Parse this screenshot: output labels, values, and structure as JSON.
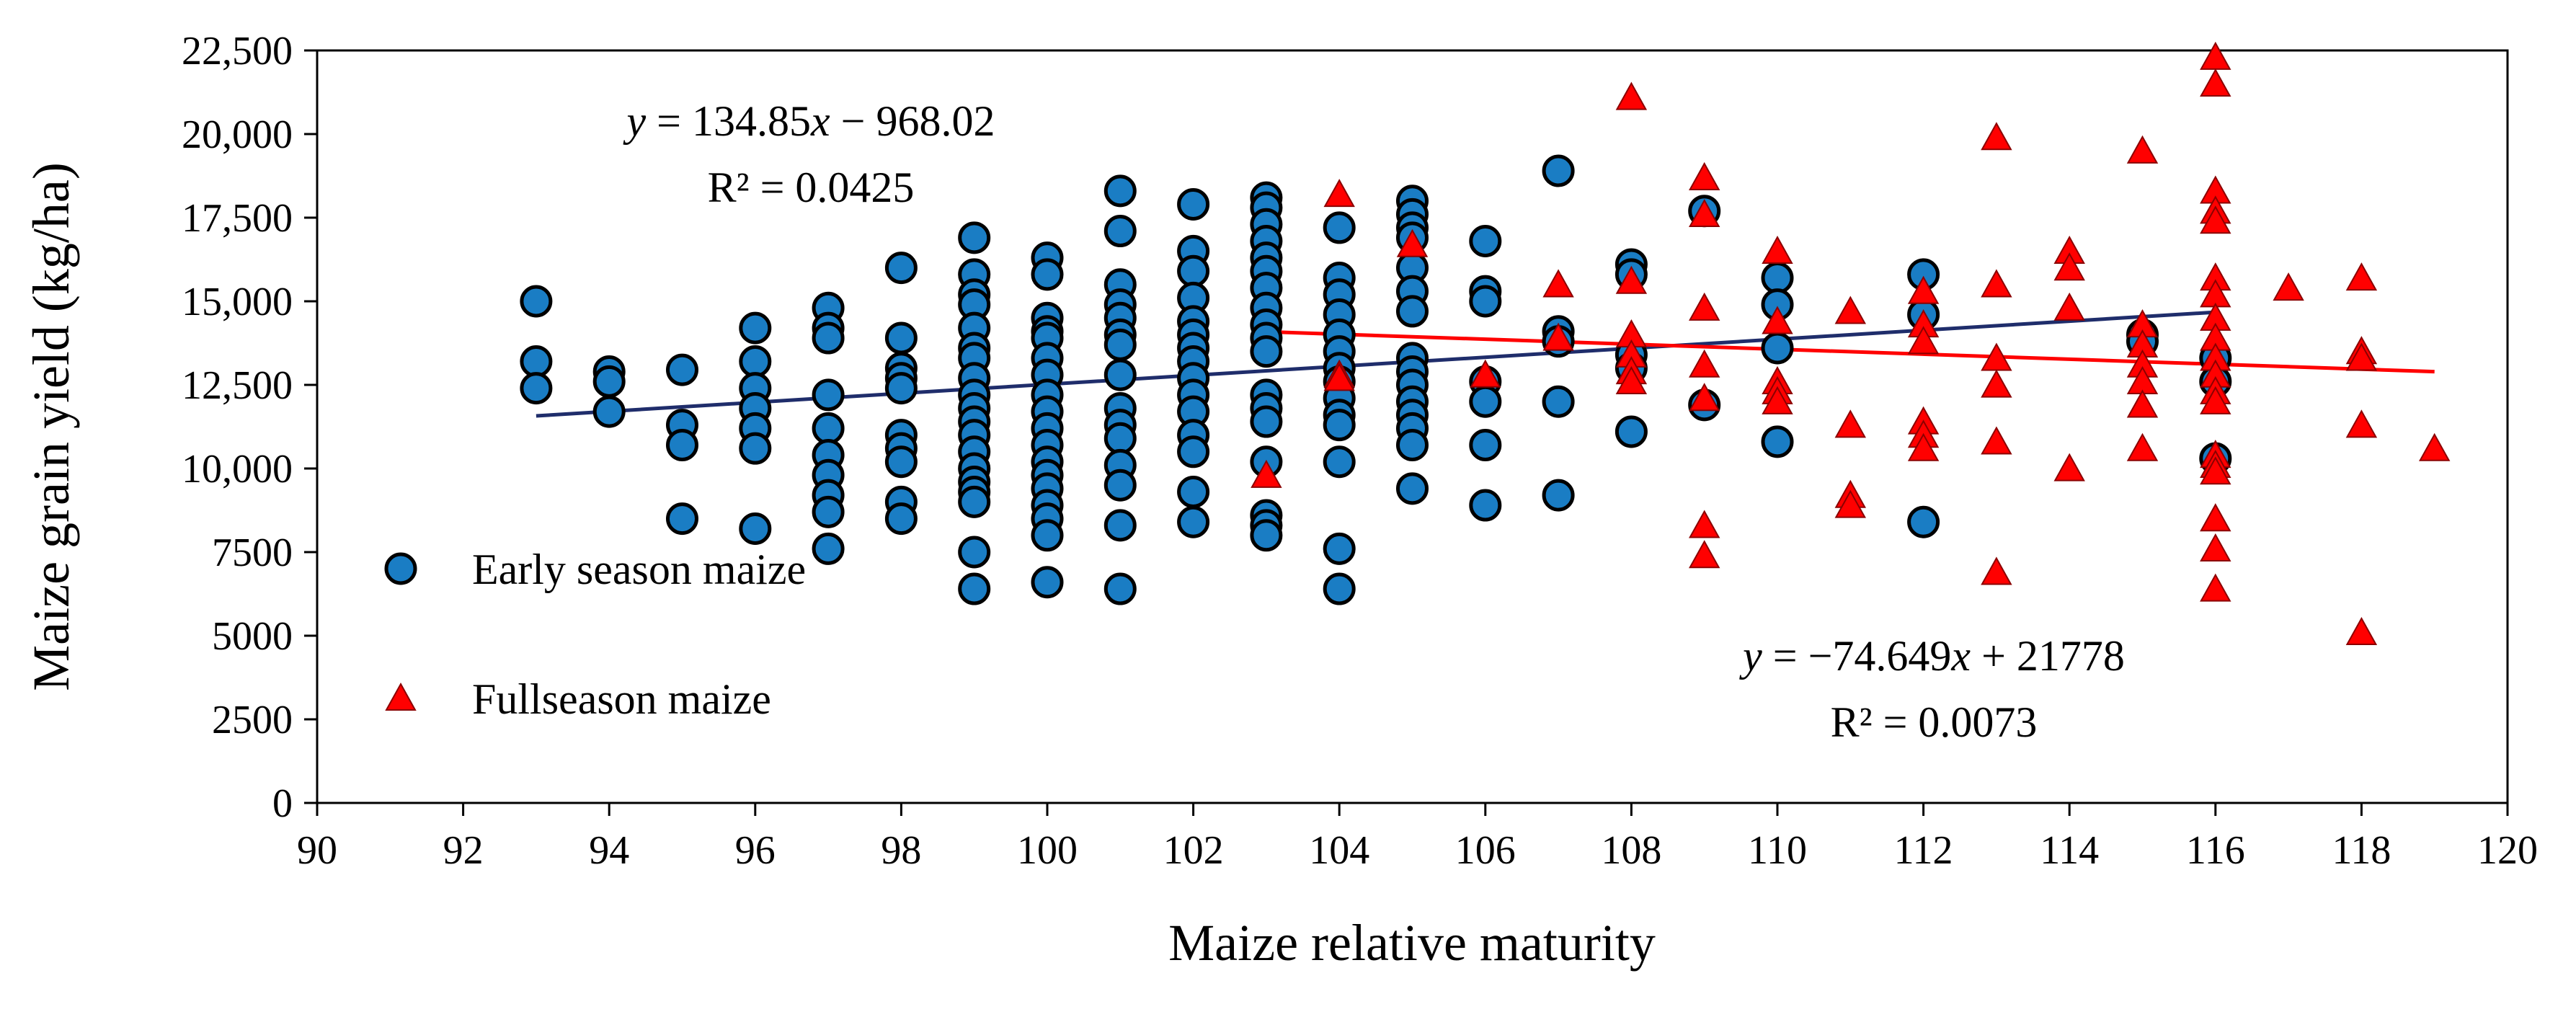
{
  "chart_data": {
    "type": "scatter",
    "xlabel": "Maize relative maturity",
    "ylabel": "Maize grain yield (kg/ha)",
    "xlim": [
      90,
      120
    ],
    "ylim": [
      0,
      22500
    ],
    "x_ticks": [
      90,
      92,
      94,
      96,
      98,
      100,
      102,
      104,
      106,
      108,
      110,
      112,
      114,
      116,
      118,
      120
    ],
    "y_ticks": [
      0,
      2500,
      5000,
      7500,
      10000,
      12500,
      15000,
      17500,
      20000,
      22500
    ],
    "y_tick_labels": [
      "0",
      "2500",
      "5000",
      "7500",
      "10,000",
      "12,500",
      "15,000",
      "17,500",
      "20,000",
      "22,500"
    ],
    "grid": false,
    "legend_position": "left-middle",
    "colors": {
      "early": "#1a7dc4",
      "full": "#ff0000",
      "early_edge": "#000000",
      "full_edge": "#8b0000",
      "early_trend": "#1f2d6b",
      "full_trend": "#ff0000",
      "early_eq": "#1f72b8",
      "full_eq": "#ff0000"
    },
    "series": [
      {
        "name": "Early season maize",
        "marker": "circle",
        "points": [
          [
            93,
            15000
          ],
          [
            93,
            13200
          ],
          [
            93,
            12400
          ],
          [
            94,
            12900
          ],
          [
            94,
            12600
          ],
          [
            94,
            11700
          ],
          [
            95,
            12950
          ],
          [
            95,
            11300
          ],
          [
            95,
            10700
          ],
          [
            95,
            8500
          ],
          [
            96,
            14200
          ],
          [
            96,
            13200
          ],
          [
            96,
            12400
          ],
          [
            96,
            11800
          ],
          [
            96,
            11200
          ],
          [
            96,
            10600
          ],
          [
            96,
            8200
          ],
          [
            97,
            14800
          ],
          [
            97,
            14200
          ],
          [
            97,
            13900
          ],
          [
            97,
            12200
          ],
          [
            97,
            11200
          ],
          [
            97,
            10400
          ],
          [
            97,
            9800
          ],
          [
            97,
            9200
          ],
          [
            97,
            8700
          ],
          [
            97,
            7600
          ],
          [
            98,
            16000
          ],
          [
            98,
            13900
          ],
          [
            98,
            13000
          ],
          [
            98,
            12700
          ],
          [
            98,
            12400
          ],
          [
            98,
            11000
          ],
          [
            98,
            10600
          ],
          [
            98,
            10200
          ],
          [
            98,
            9000
          ],
          [
            98,
            8500
          ],
          [
            99,
            16900
          ],
          [
            99,
            15800
          ],
          [
            99,
            15200
          ],
          [
            99,
            14900
          ],
          [
            99,
            14200
          ],
          [
            99,
            13600
          ],
          [
            99,
            13300
          ],
          [
            99,
            12700
          ],
          [
            99,
            12200
          ],
          [
            99,
            11800
          ],
          [
            99,
            11400
          ],
          [
            99,
            11000
          ],
          [
            99,
            10500
          ],
          [
            99,
            10000
          ],
          [
            99,
            9600
          ],
          [
            99,
            9300
          ],
          [
            99,
            9000
          ],
          [
            99,
            7500
          ],
          [
            99,
            6400
          ],
          [
            100,
            16300
          ],
          [
            100,
            15800
          ],
          [
            100,
            14500
          ],
          [
            100,
            14100
          ],
          [
            100,
            13900
          ],
          [
            100,
            13300
          ],
          [
            100,
            12800
          ],
          [
            100,
            12200
          ],
          [
            100,
            11700
          ],
          [
            100,
            11200
          ],
          [
            100,
            10700
          ],
          [
            100,
            10200
          ],
          [
            100,
            9800
          ],
          [
            100,
            9400
          ],
          [
            100,
            8900
          ],
          [
            100,
            8500
          ],
          [
            100,
            8000
          ],
          [
            100,
            6600
          ],
          [
            101,
            18300
          ],
          [
            101,
            17100
          ],
          [
            101,
            15500
          ],
          [
            101,
            14900
          ],
          [
            101,
            14500
          ],
          [
            101,
            14000
          ],
          [
            101,
            13700
          ],
          [
            101,
            12800
          ],
          [
            101,
            11800
          ],
          [
            101,
            11300
          ],
          [
            101,
            10900
          ],
          [
            101,
            10100
          ],
          [
            101,
            9500
          ],
          [
            101,
            8300
          ],
          [
            101,
            6400
          ],
          [
            102,
            17900
          ],
          [
            102,
            16500
          ],
          [
            102,
            15900
          ],
          [
            102,
            15100
          ],
          [
            102,
            14400
          ],
          [
            102,
            14000
          ],
          [
            102,
            13600
          ],
          [
            102,
            13200
          ],
          [
            102,
            12700
          ],
          [
            102,
            12200
          ],
          [
            102,
            11700
          ],
          [
            102,
            11000
          ],
          [
            102,
            10500
          ],
          [
            102,
            9300
          ],
          [
            102,
            8400
          ],
          [
            103,
            18100
          ],
          [
            103,
            17800
          ],
          [
            103,
            17300
          ],
          [
            103,
            16800
          ],
          [
            103,
            16300
          ],
          [
            103,
            15900
          ],
          [
            103,
            15400
          ],
          [
            103,
            14800
          ],
          [
            103,
            14300
          ],
          [
            103,
            13900
          ],
          [
            103,
            13500
          ],
          [
            103,
            12200
          ],
          [
            103,
            11800
          ],
          [
            103,
            11400
          ],
          [
            103,
            10200
          ],
          [
            103,
            8600
          ],
          [
            103,
            8300
          ],
          [
            103,
            8000
          ],
          [
            104,
            17200
          ],
          [
            104,
            15700
          ],
          [
            104,
            15200
          ],
          [
            104,
            14600
          ],
          [
            104,
            14000
          ],
          [
            104,
            13500
          ],
          [
            104,
            13000
          ],
          [
            104,
            12600
          ],
          [
            104,
            12100
          ],
          [
            104,
            11600
          ],
          [
            104,
            11300
          ],
          [
            104,
            10200
          ],
          [
            104,
            7600
          ],
          [
            104,
            6400
          ],
          [
            105,
            18000
          ],
          [
            105,
            17600
          ],
          [
            105,
            17200
          ],
          [
            105,
            16900
          ],
          [
            105,
            16000
          ],
          [
            105,
            15300
          ],
          [
            105,
            14700
          ],
          [
            105,
            13300
          ],
          [
            105,
            12900
          ],
          [
            105,
            12500
          ],
          [
            105,
            12000
          ],
          [
            105,
            11600
          ],
          [
            105,
            11200
          ],
          [
            105,
            10700
          ],
          [
            105,
            9400
          ],
          [
            106,
            16800
          ],
          [
            106,
            15300
          ],
          [
            106,
            15000
          ],
          [
            106,
            12600
          ],
          [
            106,
            12000
          ],
          [
            106,
            10700
          ],
          [
            106,
            8900
          ],
          [
            107,
            18900
          ],
          [
            107,
            14100
          ],
          [
            107,
            13800
          ],
          [
            107,
            12000
          ],
          [
            107,
            9200
          ],
          [
            108,
            16100
          ],
          [
            108,
            15800
          ],
          [
            108,
            13400
          ],
          [
            108,
            13000
          ],
          [
            108,
            11100
          ],
          [
            109,
            17700
          ],
          [
            109,
            11900
          ],
          [
            110,
            15700
          ],
          [
            110,
            14900
          ],
          [
            110,
            13600
          ],
          [
            110,
            10800
          ],
          [
            112,
            15800
          ],
          [
            112,
            14600
          ],
          [
            112,
            8400
          ],
          [
            115,
            14000
          ],
          [
            115,
            13800
          ],
          [
            116,
            13300
          ],
          [
            116,
            12600
          ],
          [
            116,
            10300
          ]
        ]
      },
      {
        "name": "Fullseason maize",
        "marker": "triangle",
        "points": [
          [
            103,
            9700
          ],
          [
            104,
            18100
          ],
          [
            104,
            12700
          ],
          [
            104,
            12600
          ],
          [
            105,
            16600
          ],
          [
            106,
            12700
          ],
          [
            107,
            15400
          ],
          [
            107,
            13800
          ],
          [
            108,
            21000
          ],
          [
            108,
            15500
          ],
          [
            108,
            13900
          ],
          [
            108,
            13300
          ],
          [
            108,
            12800
          ],
          [
            108,
            12500
          ],
          [
            109,
            18600
          ],
          [
            109,
            17500
          ],
          [
            109,
            14700
          ],
          [
            109,
            13000
          ],
          [
            109,
            12000
          ],
          [
            109,
            8200
          ],
          [
            109,
            7300
          ],
          [
            110,
            16400
          ],
          [
            110,
            14300
          ],
          [
            110,
            12500
          ],
          [
            110,
            12200
          ],
          [
            110,
            11900
          ],
          [
            111,
            14600
          ],
          [
            111,
            11200
          ],
          [
            111,
            9100
          ],
          [
            111,
            8800
          ],
          [
            112,
            15200
          ],
          [
            112,
            14200
          ],
          [
            112,
            13700
          ],
          [
            112,
            11300
          ],
          [
            112,
            10900
          ],
          [
            112,
            10500
          ],
          [
            113,
            19800
          ],
          [
            113,
            15400
          ],
          [
            113,
            13200
          ],
          [
            113,
            12400
          ],
          [
            113,
            10700
          ],
          [
            113,
            6800
          ],
          [
            114,
            16400
          ],
          [
            114,
            15900
          ],
          [
            114,
            14700
          ],
          [
            114,
            9900
          ],
          [
            115,
            19400
          ],
          [
            115,
            14200
          ],
          [
            115,
            13600
          ],
          [
            115,
            13000
          ],
          [
            115,
            12500
          ],
          [
            115,
            11800
          ],
          [
            115,
            10500
          ],
          [
            116,
            22200
          ],
          [
            116,
            21400
          ],
          [
            116,
            18200
          ],
          [
            116,
            17600
          ],
          [
            116,
            17300
          ],
          [
            116,
            15600
          ],
          [
            116,
            15100
          ],
          [
            116,
            14400
          ],
          [
            116,
            13800
          ],
          [
            116,
            13200
          ],
          [
            116,
            12700
          ],
          [
            116,
            12200
          ],
          [
            116,
            11900
          ],
          [
            116,
            10300
          ],
          [
            116,
            10000
          ],
          [
            116,
            9800
          ],
          [
            116,
            8400
          ],
          [
            116,
            7500
          ],
          [
            116,
            6300
          ],
          [
            117,
            15300
          ],
          [
            118,
            15600
          ],
          [
            118,
            13400
          ],
          [
            118,
            13200
          ],
          [
            118,
            11200
          ],
          [
            118,
            5000
          ],
          [
            119,
            10500
          ]
        ]
      }
    ],
    "trendlines": [
      {
        "series": "Early season maize",
        "x_range": [
          93,
          116
        ],
        "slope": 134.85,
        "intercept": -968.02
      },
      {
        "series": "Fullseason maize",
        "x_range": [
          103,
          119
        ],
        "slope": -74.649,
        "intercept": 21778
      }
    ],
    "equations": {
      "early": {
        "y": "y",
        "rhs1": " = 134.85",
        "x": "x",
        "rhs2": " − 968.02",
        "r2": "R² = 0.0425"
      },
      "full": {
        "y": "y",
        "rhs1": " = −74.649",
        "x": "x",
        "rhs2": " + 21778",
        "r2": "R² = 0.0073"
      }
    },
    "legend": {
      "early_label": "Early season maize",
      "full_label": "Fullseason maize"
    }
  }
}
